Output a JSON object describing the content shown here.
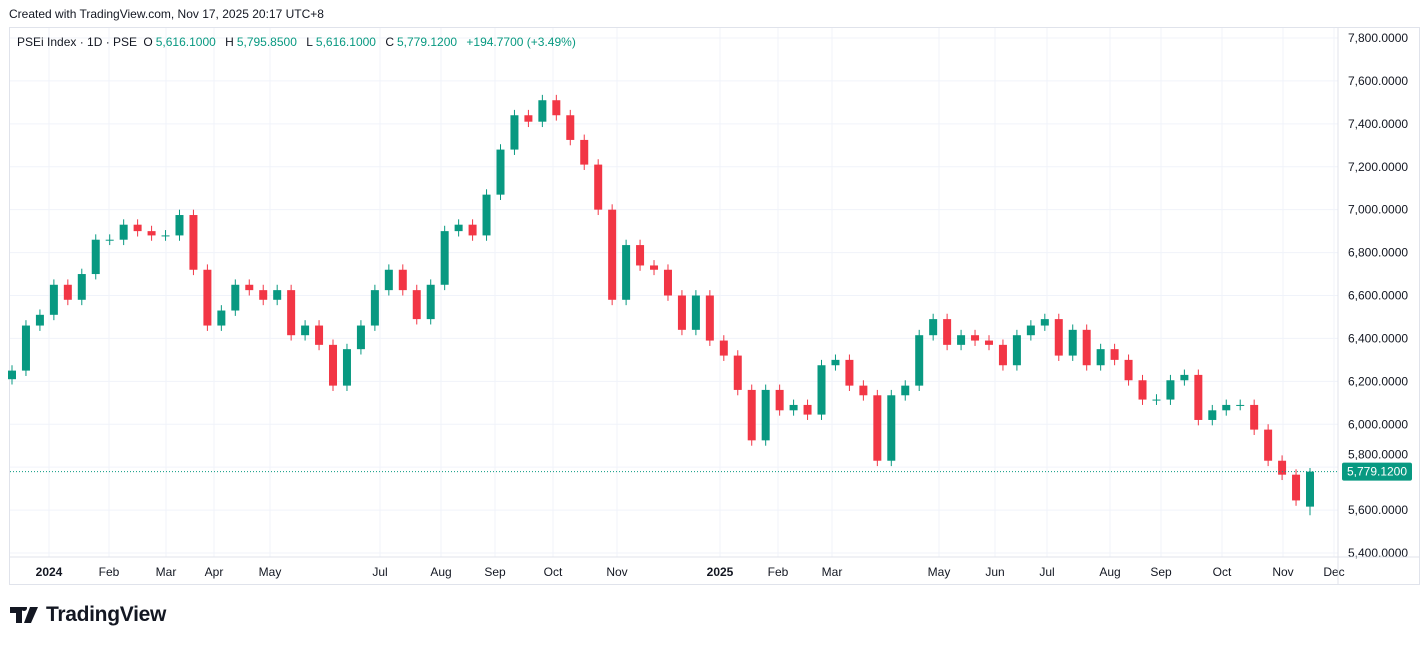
{
  "credit": "Created with TradingView.com, Nov 17, 2025 20:17 UTC+8",
  "legend": {
    "symbol": "PSEi Index · 1D · PSE",
    "o_label": "O",
    "o": "5,616.1000",
    "h_label": "H",
    "h": "5,795.8500",
    "l_label": "L",
    "l": "5,616.1000",
    "c_label": "C",
    "c": "5,779.1200",
    "change": "+194.7700 (+3.49%)"
  },
  "logo": "TradingView",
  "colors": {
    "up": "#089981",
    "down": "#f23645",
    "grid": "#f0f3fa",
    "text": "#131722"
  },
  "chart_data": {
    "type": "candlestick",
    "title": "PSEi Index · 1D · PSE",
    "interval": "1D",
    "ylim": [
      5400,
      7800
    ],
    "grid": true,
    "y_ticks": [
      "7,800.0000",
      "7,600.0000",
      "7,400.0000",
      "7,200.0000",
      "7,000.0000",
      "6,800.0000",
      "6,600.0000",
      "6,400.0000",
      "6,200.0000",
      "6,000.0000",
      "5,800.0000",
      "5,600.0000",
      "5,400.0000"
    ],
    "y_tick_values": [
      7800,
      7600,
      7400,
      7200,
      7000,
      6800,
      6600,
      6400,
      6200,
      6000,
      5800,
      5600,
      5400
    ],
    "x_ticks": [
      "2024",
      "Feb",
      "Mar",
      "Apr",
      "May",
      "Jul",
      "Aug",
      "Sep",
      "Oct",
      "Nov",
      "2025",
      "Feb",
      "Mar",
      "May",
      "Jun",
      "Jul",
      "Aug",
      "Sep",
      "Oct",
      "Nov",
      "Dec"
    ],
    "bold_x_ticks": [
      "2024",
      "2025"
    ],
    "approx_closes": [
      6250,
      6460,
      6510,
      6650,
      6580,
      6700,
      6860,
      6860,
      6930,
      6900,
      6880,
      6880,
      6975,
      6720,
      6460,
      6530,
      6650,
      6625,
      6580,
      6625,
      6415,
      6460,
      6370,
      6180,
      6350,
      6460,
      6625,
      6720,
      6625,
      6490,
      6650,
      6900,
      6930,
      6880,
      7070,
      7280,
      7440,
      7410,
      7510,
      7440,
      7325,
      7210,
      7000,
      6580,
      6835,
      6740,
      6720,
      6600,
      6440,
      6600,
      6390,
      6320,
      6160,
      5925,
      6160,
      6065,
      6090,
      6045,
      6275,
      6300,
      6180,
      6135,
      5830,
      6135,
      6180,
      6415,
      6490,
      6370,
      6415,
      6390,
      6370,
      6275,
      6415,
      6460,
      6490,
      6320,
      6440,
      6275,
      6350,
      6300,
      6205,
      6115,
      6115,
      6205,
      6230,
      6020,
      6065,
      6090,
      6090,
      5975,
      5830,
      5765,
      5645,
      5779.12
    ],
    "last": {
      "open": 5616.1,
      "high": 5795.85,
      "low": 5616.1,
      "close": 5779.12,
      "label": "5,779.1200"
    }
  }
}
